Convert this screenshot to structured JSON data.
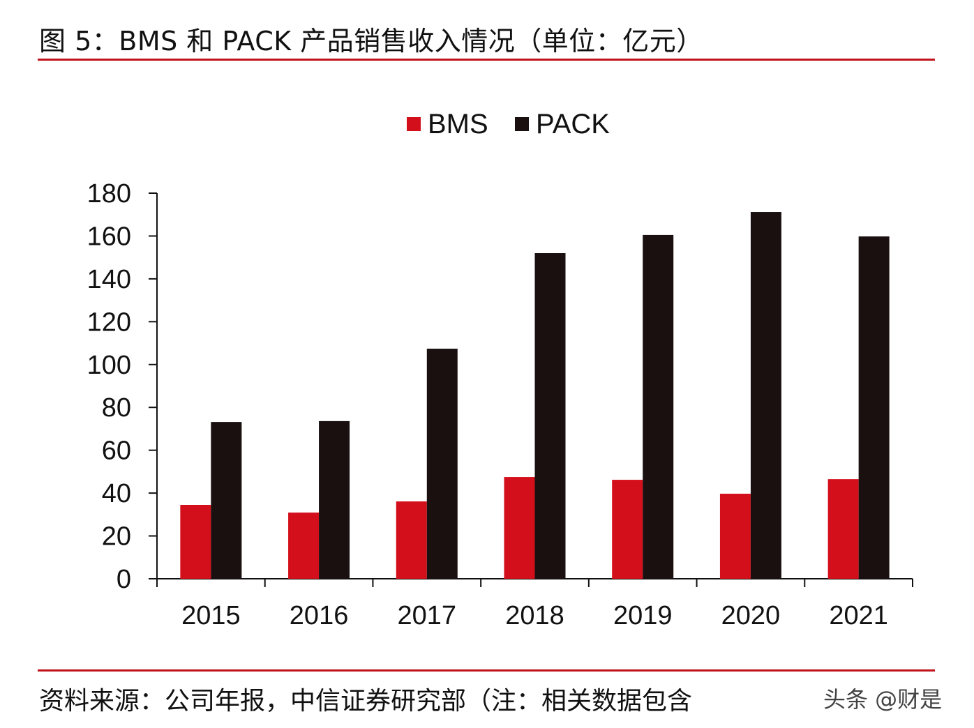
{
  "header": {
    "title": "图 5：BMS 和 PACK 产品销售收入情况（单位：亿元）"
  },
  "footer": {
    "source": "资料来源：公司年报，中信证券研究部（注：相关数据包含",
    "watermark": "头条 @财是"
  },
  "colors": {
    "accent": "#c0121b",
    "BMS": "#d40f1c",
    "PACK": "#1a1010"
  },
  "chart_data": {
    "type": "bar",
    "title": "",
    "xlabel": "",
    "ylabel": "",
    "categories": [
      "2015",
      "2016",
      "2017",
      "2018",
      "2019",
      "2020",
      "2021"
    ],
    "series": [
      {
        "name": "BMS",
        "values": [
          34.5,
          30.9,
          36.1,
          47.5,
          46.2,
          39.7,
          46.5
        ]
      },
      {
        "name": "PACK",
        "values": [
          73.2,
          73.6,
          107.4,
          152.0,
          160.5,
          171.2,
          159.8
        ]
      }
    ],
    "ylim": [
      0,
      180
    ],
    "yticks": [
      "0",
      "20",
      "40",
      "60",
      "80",
      "100",
      "120",
      "140",
      "160",
      "180"
    ],
    "grid": false,
    "legend": "top-center"
  }
}
